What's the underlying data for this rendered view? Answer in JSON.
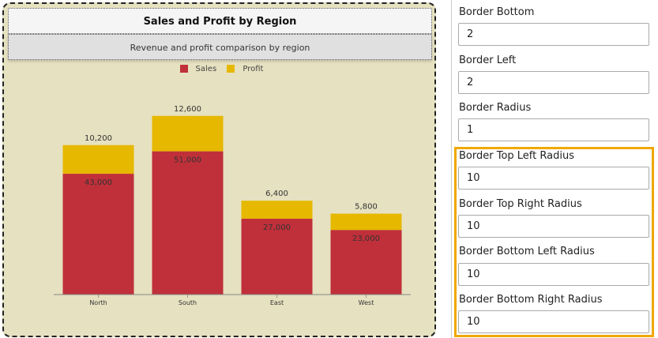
{
  "chart_data": {
    "type": "bar",
    "stacked": true,
    "title": "Sales and Profit by Region",
    "subtitle": "Revenue and profit comparison by region",
    "categories": [
      "North",
      "South",
      "East",
      "West"
    ],
    "series": [
      {
        "name": "Sales",
        "values": [
          43000,
          51000,
          27000,
          23000
        ],
        "color": "#c0303a"
      },
      {
        "name": "Profit",
        "values": [
          10200,
          12600,
          6400,
          5800
        ],
        "color": "#e6b800"
      }
    ],
    "data_labels": {
      "Sales": [
        "43,000",
        "51,000",
        "27,000",
        "23,000"
      ],
      "Profit": [
        "10,200",
        "12,600",
        "6,400",
        "5,800"
      ]
    },
    "legend": "top",
    "grid": false,
    "ylim": [
      0,
      70000
    ],
    "background": "#e6e1c0"
  },
  "panel": {
    "fields": [
      {
        "label": "Border Bottom",
        "value": "2"
      },
      {
        "label": "Border Left",
        "value": "2"
      },
      {
        "label": "Border Radius",
        "value": "1"
      },
      {
        "label": "Border Top Left Radius",
        "value": "10"
      },
      {
        "label": "Border Top Right Radius",
        "value": "10"
      },
      {
        "label": "Border Bottom Left Radius",
        "value": "10"
      },
      {
        "label": "Border Bottom Right Radius",
        "value": "10"
      }
    ],
    "highlight_color": "#f0a800"
  }
}
